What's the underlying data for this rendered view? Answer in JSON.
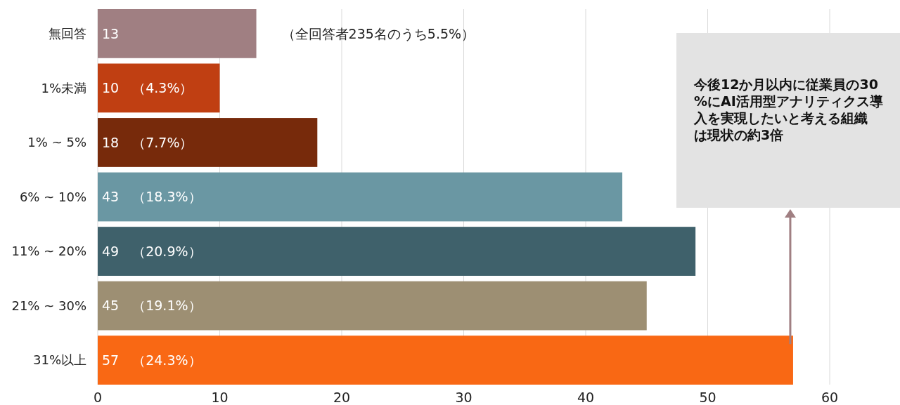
{
  "chart_data": {
    "type": "bar",
    "orientation": "horizontal",
    "categories": [
      "無回答",
      "1%未満",
      "1% ~ 5%",
      "6% ~ 10%",
      "11% ~ 20%",
      "21% ~ 30%",
      "31%以上"
    ],
    "values": [
      13,
      10,
      18,
      43,
      49,
      45,
      57
    ],
    "colors": [
      "#a07f82",
      "#c03f12",
      "#772a0b",
      "#6a97a3",
      "#3f616b",
      "#9d8f73",
      "#f96814"
    ],
    "value_labels": [
      "13",
      "10　（4.3%）",
      "18　（7.7%）",
      "43　（18.3%）",
      "49　（20.9%）",
      "45　（19.1%）",
      "57　（24.3%）"
    ],
    "xlim": [
      0,
      60
    ],
    "xticks": [
      0,
      10,
      20,
      30,
      40,
      50,
      60
    ],
    "grid": "x",
    "annotations": [
      {
        "text": "（全回答者235名のうち5.5%）",
        "x": 13,
        "y": "無回答"
      },
      "今後12か月以内に従業員の30%にAI活用型アナリティクス導入を実現したいと考える組織は現状の約3倍"
    ]
  }
}
